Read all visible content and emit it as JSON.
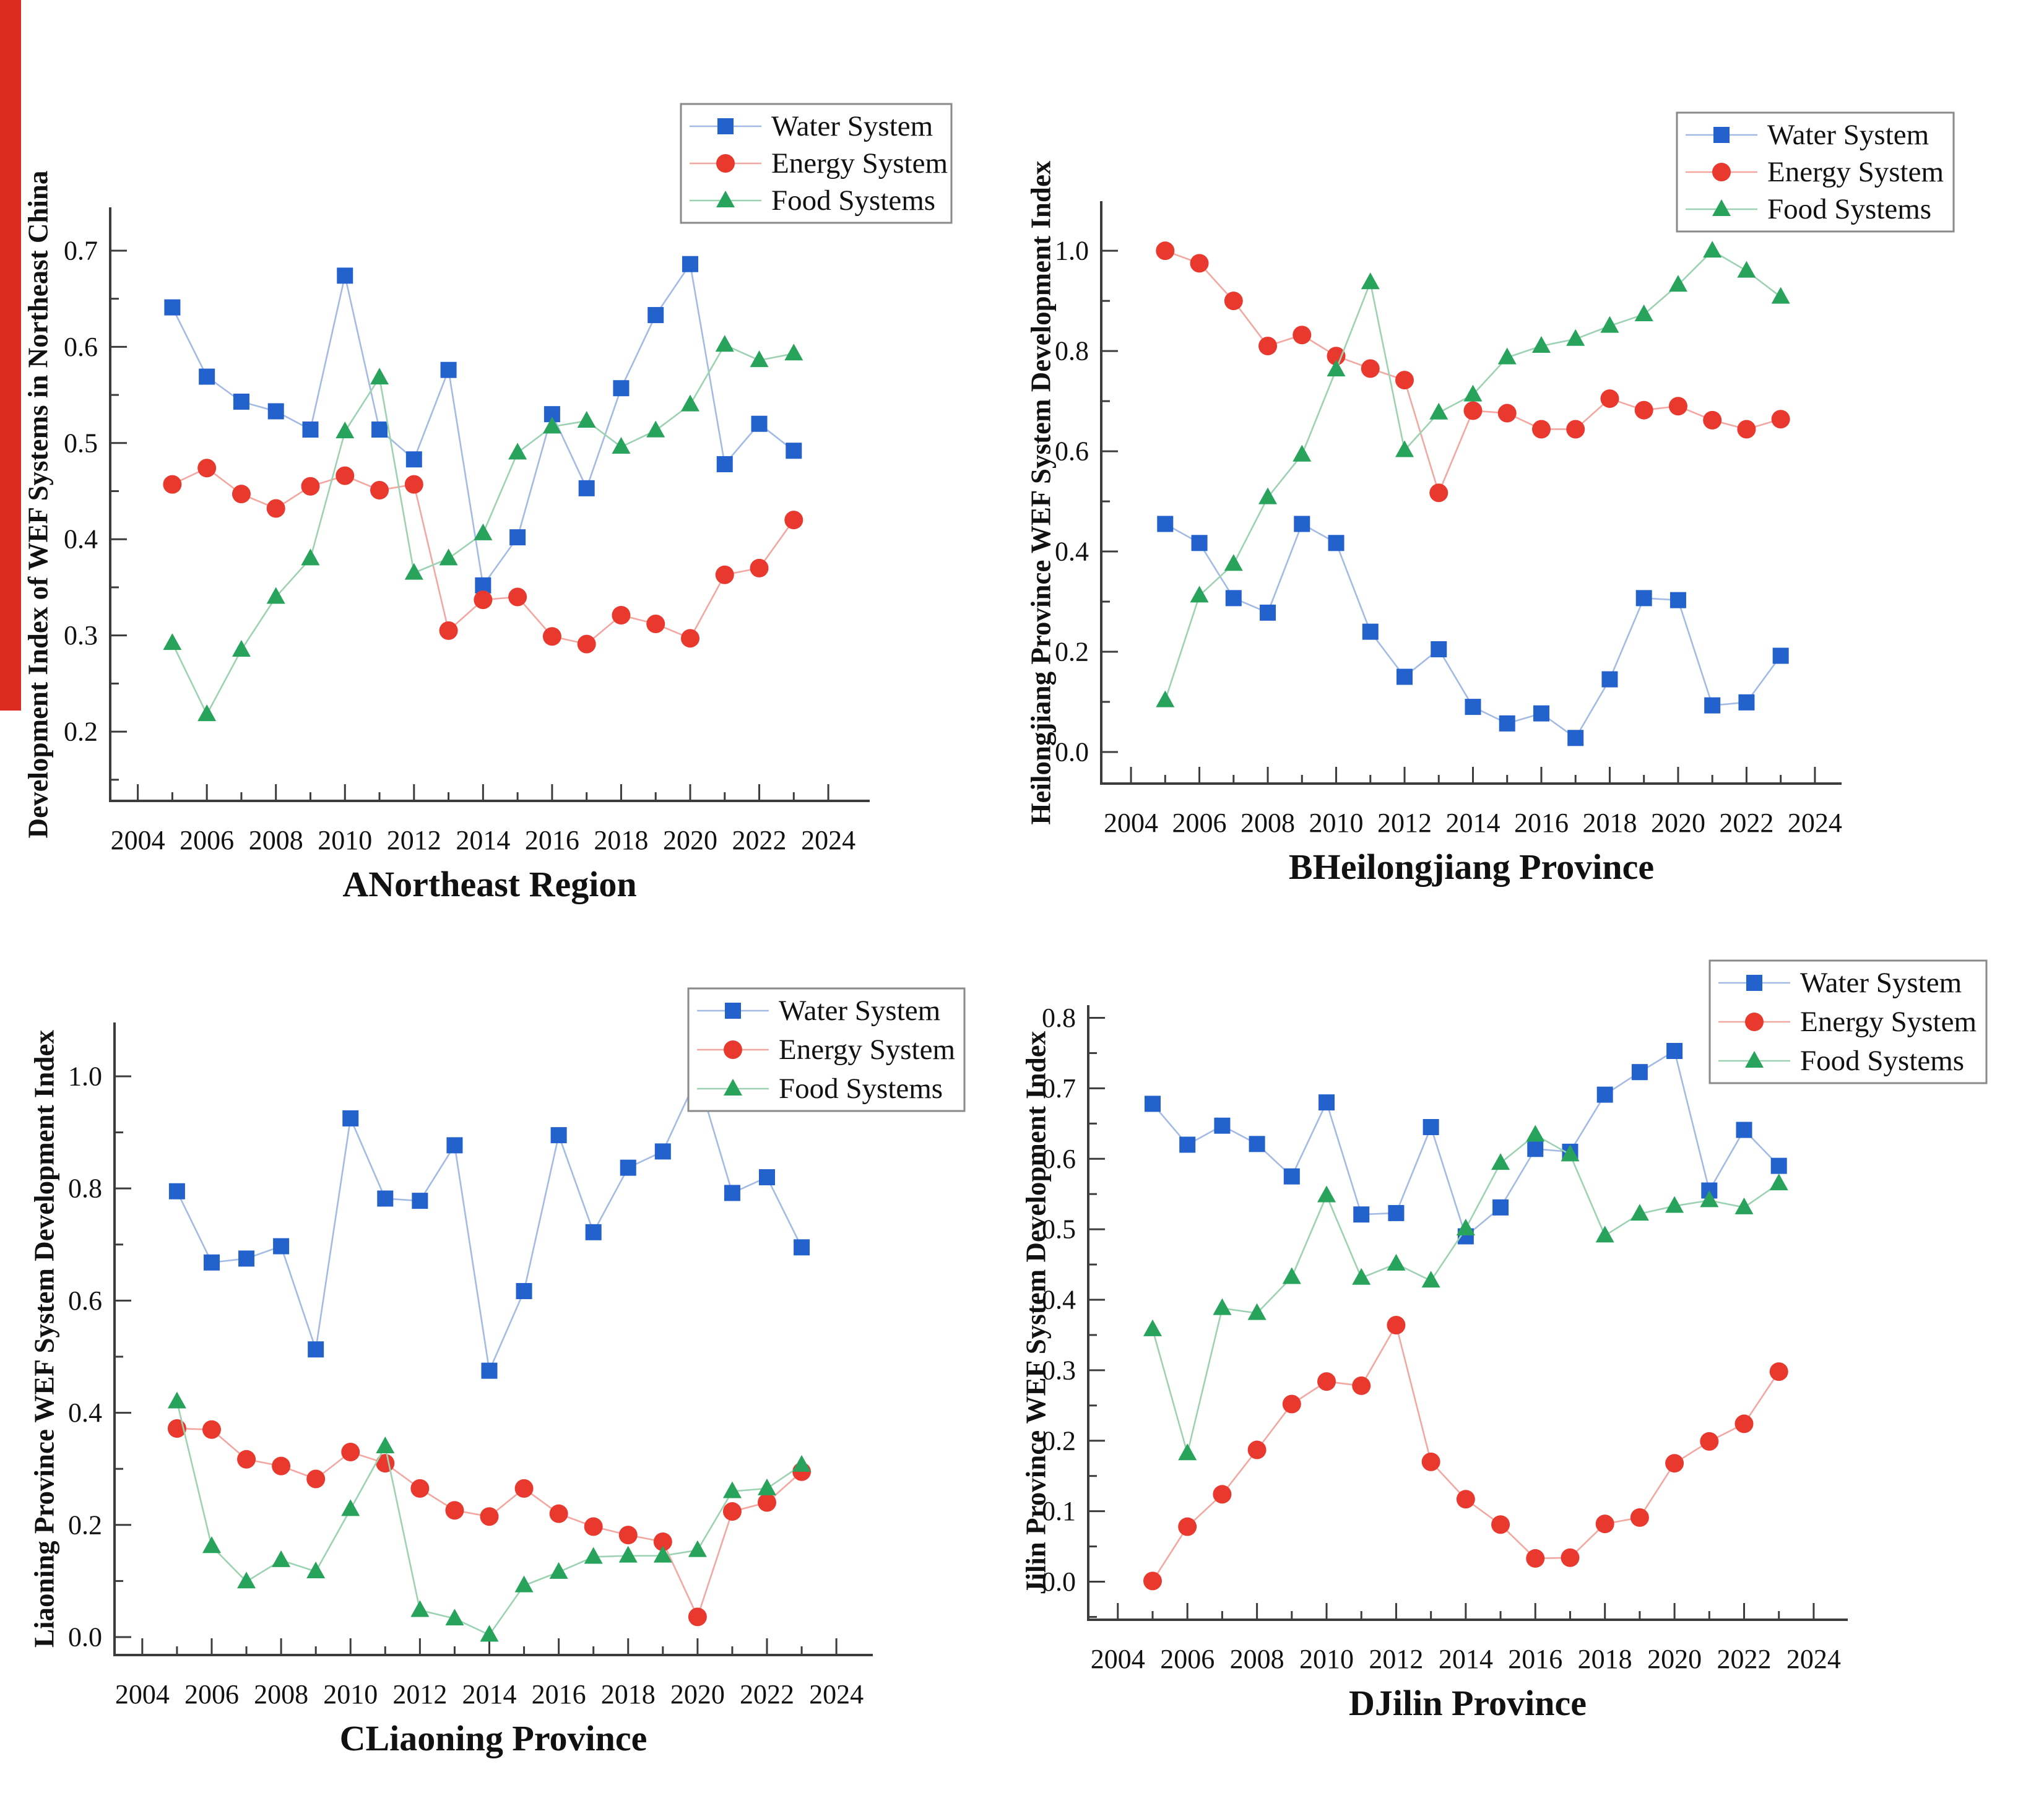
{
  "figure": {
    "background": "#ffffff",
    "left_strip_color": "#dd2b22",
    "axis_color": "#3c3c3c",
    "legend_border_color": "#8a8a8a"
  },
  "legend": {
    "entries": [
      "Water System",
      "Energy System",
      "Food Systems"
    ]
  },
  "chart_data": [
    {
      "id": "a",
      "type": "line",
      "title": "ANortheast Region",
      "ylabel": "Development Index of WEF Systems in Northeast China",
      "x": [
        2005,
        2006,
        2007,
        2008,
        2009,
        2010,
        2011,
        2012,
        2013,
        2014,
        2015,
        2016,
        2017,
        2018,
        2019,
        2020,
        2021,
        2022,
        2023
      ],
      "xtick_labels": [
        "2004",
        "2006",
        "2008",
        "2010",
        "2012",
        "2014",
        "2016",
        "2018",
        "2020",
        "2022",
        "2024"
      ],
      "ytick_labels": [
        "0.2",
        "0.3",
        "0.4",
        "0.5",
        "0.6",
        "0.7"
      ],
      "xlim": [
        2003.2,
        2025.2
      ],
      "ylim": [
        0.128,
        0.745
      ],
      "grid": false,
      "legend_position": "top-right",
      "series": [
        {
          "name": "Water System",
          "marker": "square",
          "color": "#2361cd",
          "line_color": "#a3bbe4",
          "values": [
            0.641,
            0.569,
            0.543,
            0.533,
            0.514,
            0.674,
            0.514,
            0.483,
            0.576,
            0.352,
            0.402,
            0.53,
            0.453,
            0.557,
            0.633,
            0.686,
            0.478,
            0.52,
            0.492
          ]
        },
        {
          "name": "Energy System",
          "marker": "circle",
          "color": "#e9392f",
          "line_color": "#f3a7a1",
          "values": [
            0.457,
            0.474,
            0.447,
            0.432,
            0.455,
            0.466,
            0.451,
            0.457,
            0.305,
            0.337,
            0.34,
            0.299,
            0.291,
            0.321,
            0.312,
            0.297,
            0.363,
            0.37,
            0.42
          ]
        },
        {
          "name": "Food Systems",
          "marker": "triangle",
          "color": "#27a35c",
          "line_color": "#9cd2b2",
          "values": [
            0.292,
            0.218,
            0.285,
            0.34,
            0.38,
            0.512,
            0.568,
            0.365,
            0.38,
            0.406,
            0.49,
            0.517,
            0.523,
            0.496,
            0.513,
            0.54,
            0.602,
            0.586,
            0.593
          ]
        }
      ]
    },
    {
      "id": "b",
      "type": "line",
      "title": "BHeilongjiang Province",
      "ylabel": "Heilongjiang Province WEF System Development Index",
      "x": [
        2005,
        2006,
        2007,
        2008,
        2009,
        2010,
        2011,
        2012,
        2013,
        2014,
        2015,
        2016,
        2017,
        2018,
        2019,
        2020,
        2021,
        2022,
        2023
      ],
      "xtick_labels": [
        "2004",
        "2006",
        "2008",
        "2010",
        "2012",
        "2014",
        "2016",
        "2018",
        "2020",
        "2022",
        "2024"
      ],
      "ytick_labels": [
        "0.0",
        "0.2",
        "0.4",
        "0.6",
        "0.8",
        "1.0"
      ],
      "xlim": [
        2003.13,
        2024.78
      ],
      "ylim": [
        -0.063,
        1.099
      ],
      "grid": false,
      "legend_position": "top-right",
      "series": [
        {
          "name": "Water System",
          "marker": "square",
          "color": "#2361cd",
          "line_color": "#a3bbe4",
          "values": [
            0.455,
            0.417,
            0.307,
            0.278,
            0.455,
            0.417,
            0.24,
            0.15,
            0.205,
            0.09,
            0.057,
            0.077,
            0.028,
            0.145,
            0.307,
            0.303,
            0.093,
            0.099,
            0.192
          ]
        },
        {
          "name": "Energy System",
          "marker": "circle",
          "color": "#e9392f",
          "line_color": "#f3a7a1",
          "values": [
            1.0,
            0.975,
            0.9,
            0.81,
            0.832,
            0.79,
            0.765,
            0.742,
            0.517,
            0.681,
            0.676,
            0.644,
            0.644,
            0.705,
            0.682,
            0.69,
            0.662,
            0.644,
            0.664
          ]
        },
        {
          "name": "Food Systems",
          "marker": "triangle",
          "color": "#27a35c",
          "line_color": "#9cd2b2",
          "values": [
            0.103,
            0.312,
            0.375,
            0.508,
            0.593,
            0.763,
            0.937,
            0.602,
            0.677,
            0.713,
            0.787,
            0.81,
            0.824,
            0.85,
            0.873,
            0.932,
            1.0,
            0.96,
            0.908
          ]
        }
      ]
    },
    {
      "id": "c",
      "type": "line",
      "title": "CLiaoning Province",
      "ylabel": "Liaoning Province WEF System Development Index",
      "x": [
        2005,
        2006,
        2007,
        2008,
        2009,
        2010,
        2011,
        2012,
        2013,
        2014,
        2015,
        2016,
        2017,
        2018,
        2019,
        2020,
        2021,
        2022,
        2023
      ],
      "xtick_labels": [
        "2004",
        "2006",
        "2008",
        "2010",
        "2012",
        "2014",
        "2016",
        "2018",
        "2020",
        "2022",
        "2024"
      ],
      "ytick_labels": [
        "0.0",
        "0.2",
        "0.4",
        "0.6",
        "0.8",
        "1.0"
      ],
      "xlim": [
        2003.2,
        2025.05
      ],
      "ylim": [
        -0.032,
        1.096
      ],
      "grid": false,
      "legend_position": "top-right",
      "series": [
        {
          "name": "Water System",
          "marker": "square",
          "color": "#2361cd",
          "line_color": "#a3bbe4",
          "values": [
            0.795,
            0.668,
            0.675,
            0.697,
            0.513,
            0.925,
            0.782,
            0.778,
            0.877,
            0.475,
            0.617,
            0.895,
            0.722,
            0.837,
            0.866,
            1.0,
            0.792,
            0.82,
            0.695
          ]
        },
        {
          "name": "Energy System",
          "marker": "circle",
          "color": "#e9392f",
          "line_color": "#f3a7a1",
          "values": [
            0.372,
            0.37,
            0.317,
            0.305,
            0.282,
            0.33,
            0.31,
            0.265,
            0.226,
            0.215,
            0.265,
            0.22,
            0.197,
            0.182,
            0.17,
            0.036,
            0.224,
            0.24,
            0.295
          ]
        },
        {
          "name": "Food Systems",
          "marker": "triangle",
          "color": "#27a35c",
          "line_color": "#9cd2b2",
          "values": [
            0.42,
            0.162,
            0.099,
            0.137,
            0.117,
            0.228,
            0.34,
            0.048,
            0.033,
            0.004,
            0.092,
            0.116,
            0.143,
            0.145,
            0.145,
            0.155,
            0.26,
            0.265,
            0.307
          ]
        }
      ]
    },
    {
      "id": "d",
      "type": "line",
      "title": "DJilin Province",
      "ylabel": "Jilin Province WEF System Development Index",
      "x": [
        2005,
        2006,
        2007,
        2008,
        2009,
        2010,
        2011,
        2012,
        2013,
        2014,
        2015,
        2016,
        2017,
        2018,
        2019,
        2020,
        2021,
        2022,
        2023
      ],
      "xtick_labels": [
        "2004",
        "2006",
        "2008",
        "2010",
        "2012",
        "2014",
        "2016",
        "2018",
        "2020",
        "2022",
        "2024"
      ],
      "ytick_labels": [
        "0.0",
        "0.1",
        "0.2",
        "0.3",
        "0.4",
        "0.5",
        "0.6",
        "0.7",
        "0.8"
      ],
      "xlim": [
        2003.15,
        2024.98
      ],
      "ylim": [
        -0.054,
        0.818
      ],
      "grid": false,
      "legend_position": "top-right",
      "series": [
        {
          "name": "Water System",
          "marker": "square",
          "color": "#2361cd",
          "line_color": "#a3bbe4",
          "values": [
            0.678,
            0.62,
            0.647,
            0.621,
            0.575,
            0.68,
            0.521,
            0.523,
            0.645,
            0.49,
            0.531,
            0.614,
            0.61,
            0.691,
            0.723,
            0.753,
            0.555,
            0.641,
            0.59
          ]
        },
        {
          "name": "Energy System",
          "marker": "circle",
          "color": "#e9392f",
          "line_color": "#f3a7a1",
          "values": [
            0.001,
            0.078,
            0.124,
            0.187,
            0.252,
            0.284,
            0.278,
            0.364,
            0.17,
            0.117,
            0.081,
            0.033,
            0.034,
            0.082,
            0.091,
            0.168,
            0.199,
            0.224,
            0.298
          ]
        },
        {
          "name": "Food Systems",
          "marker": "triangle",
          "color": "#27a35c",
          "line_color": "#9cd2b2",
          "values": [
            0.358,
            0.182,
            0.388,
            0.381,
            0.432,
            0.548,
            0.431,
            0.451,
            0.427,
            0.501,
            0.594,
            0.634,
            0.606,
            0.491,
            0.522,
            0.533,
            0.541,
            0.531,
            0.565
          ]
        }
      ]
    }
  ]
}
